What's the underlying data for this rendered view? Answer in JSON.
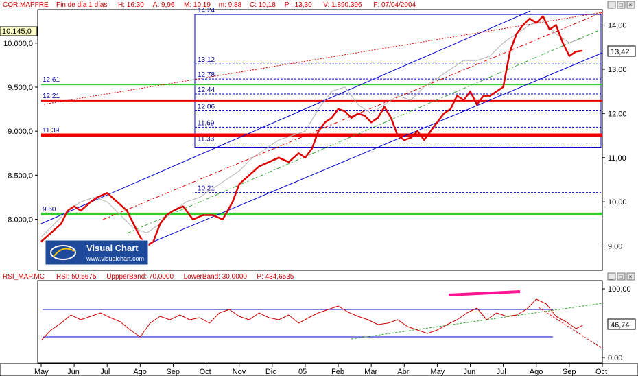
{
  "price_header": {
    "symbol": "COR.MAPFRE",
    "title": "Fin de día 1 días",
    "fields": [
      "H: 16:30",
      "A: 9,96",
      "M: 10,19",
      "m: 9,88",
      "C: 10,18",
      "P : 13,30",
      "V: 1.890.396",
      "F: 07/04/2004"
    ]
  },
  "rsi_header": {
    "name": "RSI_MAP.MC",
    "fields": [
      "RSI: 50,5675",
      "UppperBand: 70,0000",
      "LowerBand: 30,0000",
      "P: 434,6535"
    ]
  },
  "axis_labels": {
    "left_current": "10.145,0",
    "right_current": "13,42",
    "rsi_current": "46,74"
  },
  "watermark": {
    "brand": "Visual Chart",
    "url": "www.visualchart.com"
  },
  "colors": {
    "price": "#e00000",
    "compare": "#b0b0b0",
    "channel": "#0000cc",
    "support": "#33cc33",
    "resistance": "#ee0000",
    "trend": "#ff1493",
    "axis": "#000000"
  },
  "chart_data": [
    {
      "type": "line",
      "title": "COR.MAPFRE",
      "left_axis": {
        "range": [
          7420,
          10380
        ],
        "ticks": [
          "8.000,0",
          "8.500,0",
          "9.000,0",
          "9.500,0",
          "10.000,0"
        ],
        "tick_values": [
          8000,
          8500,
          9000,
          9500,
          10000
        ]
      },
      "right_axis": {
        "range": [
          8.45,
          14.35
        ],
        "ticks": [
          "9,00",
          "10,00",
          "11,00",
          "12,00",
          "13,00",
          "14,00"
        ],
        "tick_values": [
          9,
          10,
          11,
          12,
          13,
          14
        ]
      },
      "x_labels": [
        "May",
        "Jun",
        "Jul",
        "Ago",
        "Sep",
        "Oct",
        "Nov",
        "Dic",
        "05",
        "Feb",
        "Mar",
        "Abr",
        "May",
        "Jun",
        "Jul",
        "Ago",
        "Sep",
        "Oct"
      ],
      "fib_levels": [
        "14.24",
        "13.12",
        "12.78",
        "12.44",
        "12.06",
        "11.69",
        "11.33",
        "10.21"
      ],
      "fib_level_values": [
        14.24,
        13.12,
        12.78,
        12.44,
        12.06,
        11.69,
        11.33,
        10.21
      ],
      "horizontal_levels": [
        {
          "label": "12.61",
          "value": 9530,
          "color": "#33cc33"
        },
        {
          "label": "12.21",
          "value": 9345,
          "color": "#ee0000"
        },
        {
          "label": "11.39",
          "value": 8955,
          "color": "#ee0000"
        },
        {
          "label": "9.60",
          "value": 8060,
          "color": "#33cc33"
        }
      ],
      "series": [
        {
          "axis": "right",
          "color": "#e00000",
          "x": [
            0,
            0.3,
            0.6,
            0.8,
            1.0,
            1.2,
            1.5,
            1.7,
            2.0,
            2.3,
            2.6,
            2.8,
            3.0,
            3.2,
            3.4,
            3.6,
            3.8,
            4.0,
            4.3,
            4.6,
            4.9,
            5.2,
            5.5,
            5.8,
            6.0,
            6.3,
            6.6,
            6.9,
            7.2,
            7.5,
            7.8,
            8.0,
            8.2,
            8.4,
            8.6,
            8.8,
            9.0,
            9.2,
            9.4,
            9.6,
            9.8,
            10.0,
            10.2,
            10.4,
            10.6,
            10.8,
            11.0,
            11.2,
            11.4,
            11.6,
            11.8,
            12.0,
            12.2,
            12.4,
            12.6,
            12.8,
            13.0,
            13.2,
            13.4,
            13.6,
            13.8,
            14.0,
            14.2,
            14.4,
            14.6,
            14.8,
            15.0,
            15.2,
            15.4,
            15.6,
            15.8,
            16.0,
            16.2,
            16.4
          ],
          "values": [
            9.1,
            9.3,
            9.5,
            9.8,
            9.9,
            9.8,
            10.0,
            10.1,
            10.2,
            10.0,
            9.8,
            9.5,
            9.2,
            9.0,
            9.1,
            9.5,
            9.7,
            9.8,
            9.9,
            9.6,
            9.7,
            9.7,
            9.6,
            10.0,
            10.4,
            10.6,
            10.8,
            10.9,
            11.0,
            10.9,
            11.1,
            11.0,
            11.2,
            11.6,
            11.8,
            11.9,
            12.1,
            12.05,
            11.9,
            12.0,
            11.95,
            11.8,
            11.9,
            12.15,
            11.9,
            11.5,
            11.4,
            11.45,
            11.6,
            11.4,
            11.6,
            11.8,
            12.0,
            12.1,
            12.4,
            12.3,
            12.5,
            12.2,
            12.4,
            12.4,
            12.5,
            12.6,
            13.4,
            13.8,
            14.0,
            14.15,
            14.05,
            14.2,
            13.9,
            14.0,
            13.6,
            13.3,
            13.4,
            13.42
          ]
        },
        {
          "axis": "right",
          "color": "#b0b0b0",
          "x": [
            0,
            0.4,
            0.8,
            1.2,
            1.6,
            2.0,
            2.4,
            2.8,
            3.2,
            3.6,
            4.0,
            4.4,
            4.8,
            5.2,
            5.6,
            6.0,
            6.4,
            6.8,
            7.2,
            7.6,
            8.0,
            8.4,
            8.8,
            9.2,
            9.6,
            10.0,
            10.4,
            10.8,
            11.2,
            11.6,
            12.0,
            12.4,
            12.8,
            13.2,
            13.6,
            14.0,
            14.4,
            14.8,
            15.2,
            15.6,
            16.0,
            16.4
          ],
          "values": [
            9.2,
            9.5,
            9.8,
            10.0,
            10.1,
            10.0,
            9.7,
            9.4,
            9.3,
            9.5,
            9.8,
            10.0,
            10.1,
            10.3,
            10.5,
            10.7,
            11.0,
            11.2,
            11.4,
            11.5,
            11.6,
            12.1,
            12.5,
            12.6,
            12.2,
            12.0,
            12.2,
            12.4,
            12.3,
            12.6,
            12.8,
            13.0,
            13.2,
            13.2,
            13.3,
            13.6,
            13.8,
            14.0,
            14.1,
            13.8,
            13.6,
            13.7
          ]
        }
      ]
    },
    {
      "type": "line",
      "title": "RSI_MAP.MC",
      "y_axis": {
        "range": [
          -8,
          112
        ],
        "ticks": [
          "0,00",
          "100,00"
        ],
        "tick_values": [
          0,
          100
        ]
      },
      "bands": {
        "upper": 70,
        "lower": 30
      },
      "series": [
        {
          "axis": "left",
          "color": "#cc0000",
          "x": [
            0,
            0.3,
            0.6,
            0.9,
            1.2,
            1.5,
            1.8,
            2.1,
            2.4,
            2.7,
            3.0,
            3.3,
            3.6,
            3.9,
            4.2,
            4.5,
            4.8,
            5.1,
            5.4,
            5.7,
            6.0,
            6.3,
            6.6,
            6.9,
            7.2,
            7.5,
            7.8,
            8.1,
            8.4,
            8.7,
            9.0,
            9.3,
            9.6,
            9.9,
            10.2,
            10.5,
            10.8,
            11.1,
            11.4,
            11.7,
            12.0,
            12.3,
            12.6,
            12.9,
            13.2,
            13.5,
            13.8,
            14.1,
            14.4,
            14.7,
            15.0,
            15.3,
            15.6,
            15.9,
            16.2,
            16.4
          ],
          "values": [
            25,
            40,
            50,
            62,
            55,
            60,
            65,
            58,
            52,
            40,
            30,
            50,
            60,
            55,
            62,
            55,
            58,
            50,
            65,
            70,
            60,
            55,
            65,
            58,
            55,
            62,
            50,
            58,
            65,
            70,
            75,
            66,
            60,
            55,
            48,
            50,
            55,
            45,
            40,
            35,
            40,
            48,
            55,
            65,
            72,
            55,
            65,
            60,
            62,
            70,
            85,
            78,
            60,
            52,
            42,
            46.74
          ]
        }
      ]
    }
  ]
}
